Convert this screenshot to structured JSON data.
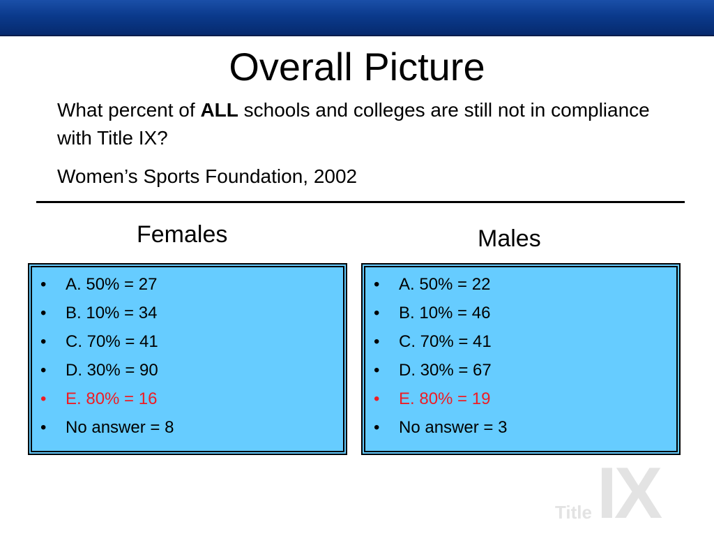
{
  "slide": {
    "title": "Overall Picture",
    "question_prefix": "What percent of ",
    "question_bold": "ALL",
    "question_suffix": " schools and colleges are still not in compliance with Title IX?",
    "source": "Women’s Sports Foundation, 2002"
  },
  "females": {
    "heading": "Females",
    "items": [
      {
        "text": "A. 50% = 27",
        "highlight": false
      },
      {
        "text": "B. 10% = 34",
        "highlight": false
      },
      {
        "text": "C. 70% = 41",
        "highlight": false
      },
      {
        "text": "D. 30% = 90",
        "highlight": false
      },
      {
        "text": "E. 80% = 16",
        "highlight": true
      },
      {
        "text": "No answer = 8",
        "highlight": false
      }
    ]
  },
  "males": {
    "heading": "Males",
    "items": [
      {
        "text": "A. 50% = 22",
        "highlight": false
      },
      {
        "text": "B. 10% = 46",
        "highlight": false
      },
      {
        "text": "C. 70% = 41",
        "highlight": false
      },
      {
        "text": "D. 30% = 67",
        "highlight": false
      },
      {
        "text": "E. 80% = 19",
        "highlight": true
      },
      {
        "text": "No answer = 3",
        "highlight": false
      }
    ]
  },
  "bullet": "•",
  "logo": {
    "small": "Title",
    "big": "IX"
  },
  "colors": {
    "header_bar": "#0b3a8c",
    "panel_fill": "#66ccff",
    "highlight_text": "#ee1c24",
    "logo_text": "#e3e3e3"
  }
}
